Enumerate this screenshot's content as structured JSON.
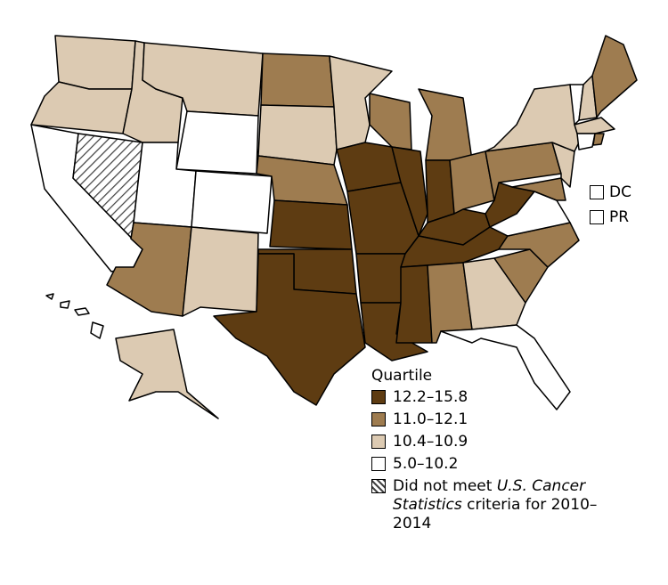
{
  "legend": {
    "title": "Quartile",
    "items": [
      {
        "label": "12.2–15.8",
        "color": "#5e3c12"
      },
      {
        "label": "11.0–12.1",
        "color": "#9e7c50"
      },
      {
        "label": "10.4–10.9",
        "color": "#dccab2"
      },
      {
        "label": "5.0–10.2",
        "color": "#ffffff"
      },
      {
        "hatched": true,
        "label_parts": [
          {
            "text": "Did not meet "
          },
          {
            "text": "U.S. Cancer Statistics",
            "italic": true
          },
          {
            "text": " criteria for 2010–2014"
          }
        ]
      }
    ]
  },
  "insets": [
    {
      "label": "DC"
    },
    {
      "label": "PR"
    }
  ]
}
